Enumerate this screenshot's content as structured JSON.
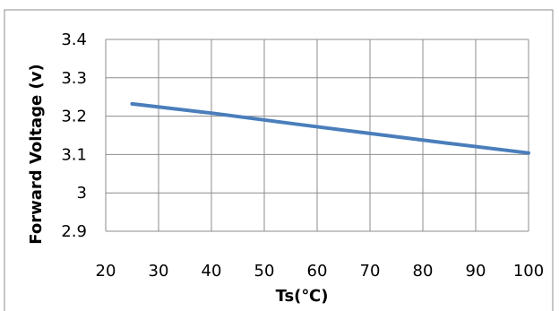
{
  "chart_data": {
    "type": "line",
    "title": "",
    "xlabel": "Ts(℃)",
    "ylabel": "Forward Voltage (v)",
    "xlim": [
      20,
      100
    ],
    "ylim": [
      2.9,
      3.4
    ],
    "x_ticks": [
      20,
      30,
      40,
      50,
      60,
      70,
      80,
      90,
      100
    ],
    "y_ticks": [
      2.9,
      3.0,
      3.1,
      3.2,
      3.3,
      3.4
    ],
    "x_tick_labels": [
      "20",
      "30",
      "40",
      "50",
      "60",
      "70",
      "80",
      "90",
      "100"
    ],
    "y_tick_labels": [
      "2.9",
      "3",
      "3.1",
      "3.2",
      "3.3",
      "3.4"
    ],
    "grid": true,
    "legend": "none",
    "series": [
      {
        "color": "#4a7ebb",
        "x": [
          25,
          40,
          55,
          70,
          85,
          100
        ],
        "y": [
          3.232,
          3.208,
          3.181,
          3.155,
          3.129,
          3.104
        ]
      }
    ]
  }
}
